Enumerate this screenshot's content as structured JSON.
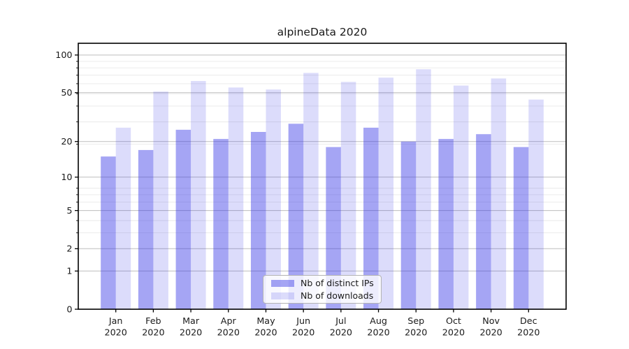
{
  "chart_data": {
    "type": "bar",
    "title": "alpineData 2020",
    "categories": [
      "Jan",
      "Feb",
      "Mar",
      "Apr",
      "May",
      "Jun",
      "Jul",
      "Aug",
      "Sep",
      "Oct",
      "Nov",
      "Dec"
    ],
    "xlabel_year": "2020",
    "series": [
      {
        "name": "Nb of distinct IPs",
        "color": "rgba(50,50,230,0.44)",
        "values": [
          15,
          17,
          25,
          21,
          24,
          28,
          18,
          26,
          20,
          21,
          23,
          18
        ]
      },
      {
        "name": "Nb of downloads",
        "color": "rgba(50,50,230,0.17)",
        "values": [
          26,
          51,
          62,
          55,
          53,
          72,
          61,
          66,
          77,
          57,
          65,
          44
        ]
      }
    ],
    "yscale": "log1p",
    "yticks": [
      0,
      1,
      2,
      5,
      10,
      20,
      50,
      100
    ],
    "minor_grid_values": [
      3,
      4,
      6,
      7,
      8,
      19,
      29,
      39,
      49,
      59,
      69,
      79,
      89
    ],
    "ylim": [
      0,
      124
    ],
    "grid": true,
    "legend_position": "lower center",
    "colors": {
      "bar_distinct_ips": "rgba(50,50,230,0.44)",
      "bar_downloads": "rgba(50,50,230,0.17)",
      "major_grid": "#bdbdbd",
      "minor_grid": "#e9e9e9",
      "axis": "#000000",
      "text": "#1a1a1a"
    }
  }
}
